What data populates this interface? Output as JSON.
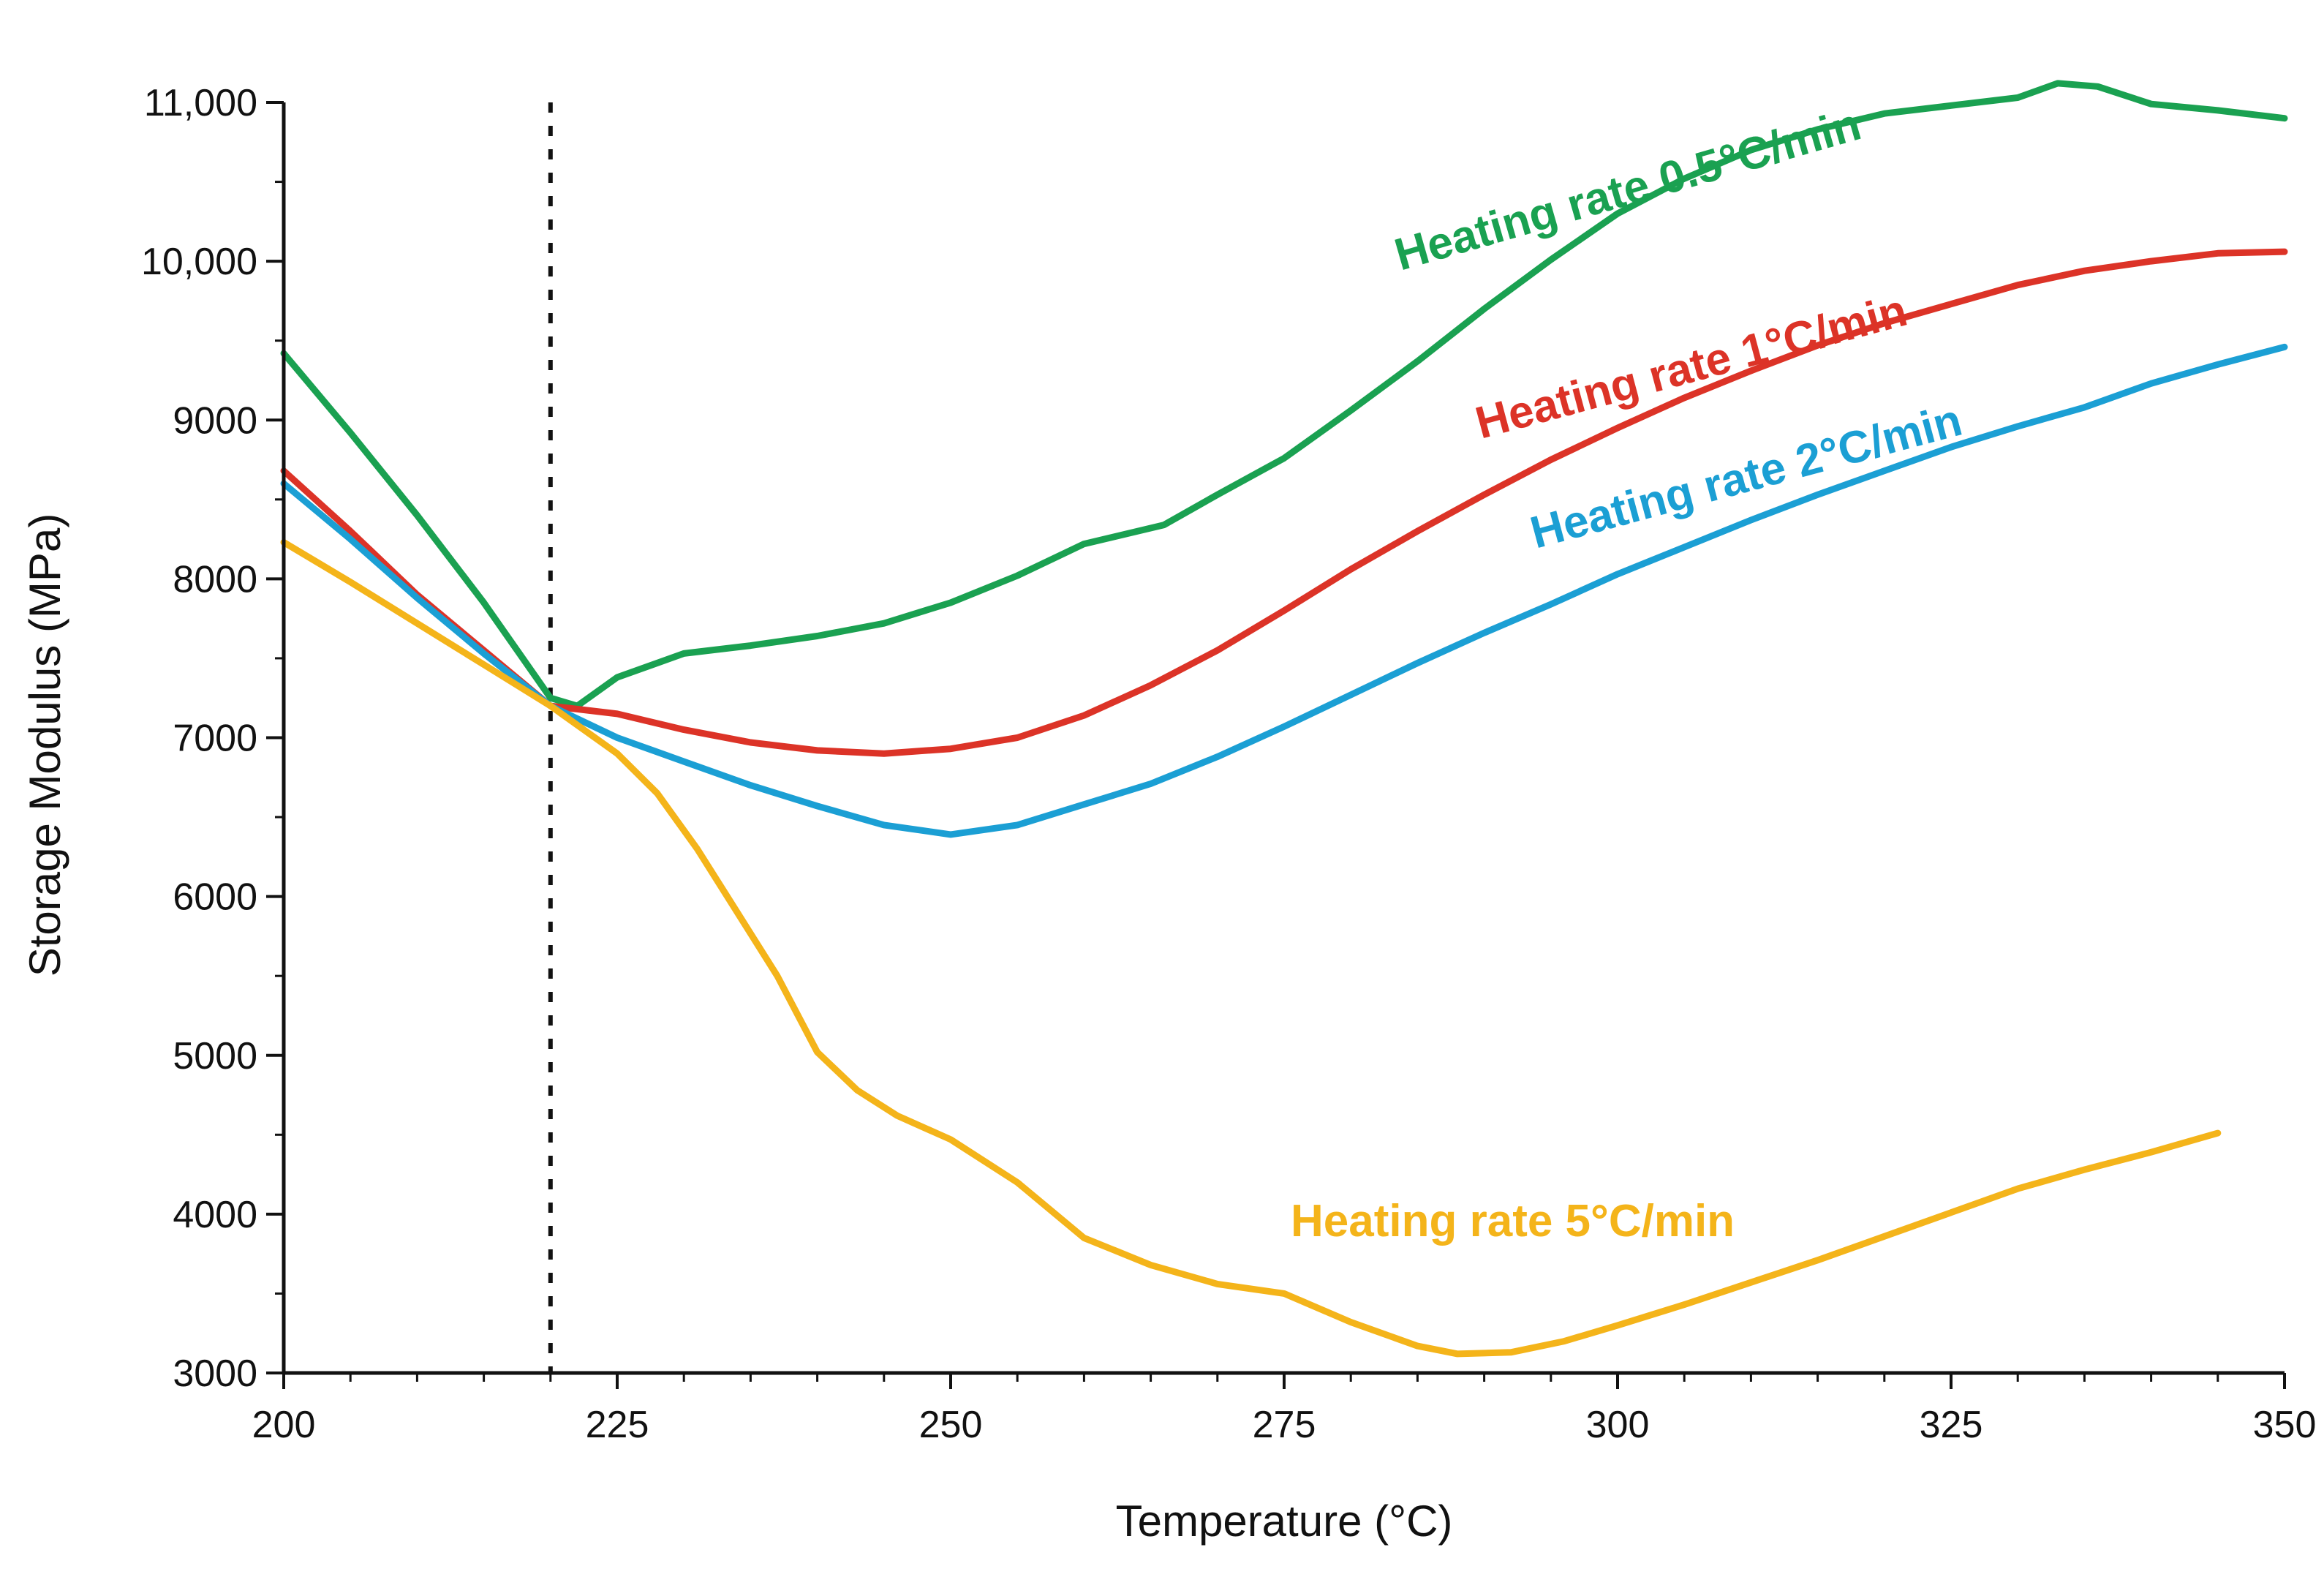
{
  "chart_data": {
    "type": "line",
    "title": "",
    "xlabel": "Temperature (°C)",
    "ylabel": "Storage Modulus (MPa)",
    "xlim": [
      200,
      350
    ],
    "ylim": [
      3000,
      11000
    ],
    "x_ticks": [
      200,
      225,
      250,
      275,
      300,
      325,
      350
    ],
    "x_tick_labels": [
      "200",
      "225",
      "250",
      "275",
      "300",
      "325",
      "350"
    ],
    "y_ticks": [
      3000,
      4000,
      5000,
      6000,
      7000,
      8000,
      9000,
      10000,
      11000
    ],
    "y_tick_labels": [
      "3000",
      "4000",
      "5000",
      "6000",
      "7000",
      "8000",
      "9000",
      "10,000",
      "11,000"
    ],
    "grid": false,
    "reference_line": {
      "x": 220,
      "style": "dotted"
    },
    "series": [
      {
        "name": "Heating rate 0.5°C/min",
        "color": "#1aa151",
        "x": [
          200,
          205,
          210,
          215,
          220,
          222,
          225,
          230,
          235,
          240,
          245,
          250,
          255,
          260,
          263,
          266,
          270,
          275,
          280,
          285,
          290,
          295,
          300,
          305,
          310,
          315,
          320,
          325,
          330,
          333,
          336,
          340,
          345,
          350
        ],
        "y": [
          9420,
          8920,
          8400,
          7850,
          7250,
          7200,
          7380,
          7530,
          7580,
          7640,
          7720,
          7850,
          8020,
          8220,
          8280,
          8340,
          8530,
          8760,
          9060,
          9370,
          9700,
          10010,
          10300,
          10520,
          10700,
          10830,
          10930,
          10980,
          11030,
          11120,
          11100,
          10990,
          10950,
          10900
        ]
      },
      {
        "name": "Heating rate 1°C/min",
        "color": "#dc3327",
        "x": [
          200,
          205,
          210,
          215,
          220,
          225,
          230,
          235,
          240,
          245,
          250,
          255,
          260,
          265,
          270,
          275,
          280,
          285,
          290,
          295,
          300,
          305,
          310,
          315,
          320,
          325,
          330,
          335,
          340,
          345,
          350
        ],
        "y": [
          8680,
          8300,
          7900,
          7550,
          7200,
          7150,
          7050,
          6970,
          6920,
          6900,
          6930,
          7000,
          7140,
          7330,
          7550,
          7800,
          8060,
          8300,
          8530,
          8750,
          8950,
          9140,
          9310,
          9470,
          9610,
          9730,
          9850,
          9940,
          10000,
          10050,
          10060
        ]
      },
      {
        "name": "Heating rate 2°C/min",
        "color": "#1b9fd4",
        "x": [
          200,
          205,
          210,
          215,
          220,
          225,
          230,
          235,
          240,
          245,
          250,
          255,
          260,
          265,
          270,
          275,
          280,
          285,
          290,
          295,
          300,
          305,
          310,
          315,
          320,
          325,
          330,
          335,
          340,
          345,
          350
        ],
        "y": [
          8600,
          8250,
          7880,
          7530,
          7200,
          7000,
          6850,
          6700,
          6570,
          6450,
          6390,
          6450,
          6580,
          6710,
          6880,
          7070,
          7270,
          7470,
          7660,
          7840,
          8030,
          8200,
          8370,
          8530,
          8680,
          8830,
          8960,
          9080,
          9230,
          9350,
          9460
        ]
      },
      {
        "name": "Heating rate 5°C/min",
        "color": "#f4b41a",
        "x": [
          200,
          205,
          210,
          215,
          220,
          225,
          228,
          231,
          234,
          237,
          240,
          243,
          246,
          250,
          255,
          260,
          265,
          270,
          275,
          280,
          285,
          288,
          292,
          296,
          300,
          305,
          310,
          315,
          320,
          325,
          330,
          335,
          340,
          345
        ],
        "y": [
          8230,
          7980,
          7720,
          7460,
          7200,
          6900,
          6650,
          6300,
          5900,
          5500,
          5020,
          4780,
          4620,
          4470,
          4200,
          3850,
          3680,
          3560,
          3500,
          3320,
          3170,
          3120,
          3130,
          3200,
          3300,
          3430,
          3570,
          3710,
          3860,
          4010,
          4160,
          4280,
          4390,
          4510
        ]
      }
    ],
    "annotations": [
      {
        "text": "Heating rate 0.5°C/min",
        "series": 0
      },
      {
        "text": "Heating rate 1°C/min",
        "series": 1
      },
      {
        "text": "Heating rate 2°C/min",
        "series": 2
      },
      {
        "text": "Heating rate 5°C/min",
        "series": 3
      }
    ]
  }
}
